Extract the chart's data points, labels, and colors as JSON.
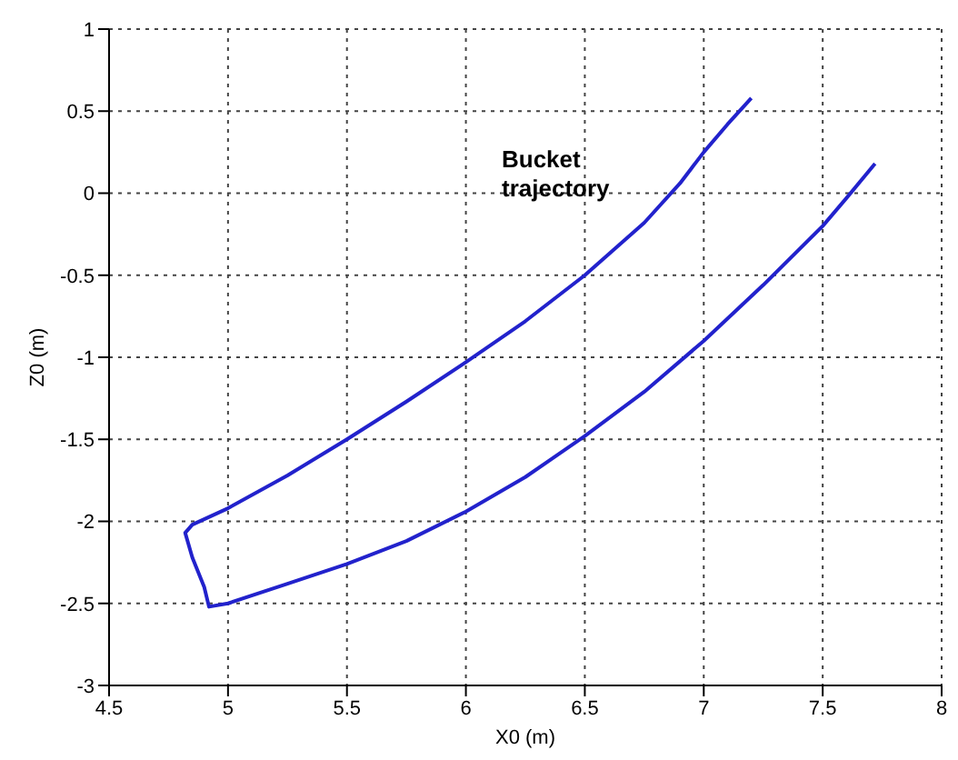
{
  "chart_data": {
    "type": "line",
    "xlabel": "X0 (m)",
    "ylabel": "Z0 (m)",
    "annotations": [
      "Bucket trajectory"
    ],
    "series": [
      {
        "color": "#2222cc",
        "x": [
          7.2,
          7.1,
          7.0,
          6.9,
          6.75,
          6.5,
          6.25,
          6.0,
          5.75,
          5.5,
          5.25,
          5.0,
          4.85,
          4.82,
          4.85,
          4.9,
          4.92,
          5.0,
          5.25,
          5.5,
          5.75,
          6.0,
          6.25,
          6.5,
          6.75,
          7.0,
          7.25,
          7.5,
          7.6,
          7.72
        ],
        "values": [
          0.58,
          0.42,
          0.25,
          0.06,
          -0.18,
          -0.5,
          -0.78,
          -1.03,
          -1.27,
          -1.5,
          -1.72,
          -1.92,
          -2.02,
          -2.07,
          -2.22,
          -2.4,
          -2.52,
          -2.5,
          -2.38,
          -2.26,
          -2.12,
          -1.94,
          -1.73,
          -1.48,
          -1.21,
          -0.9,
          -0.56,
          -0.2,
          -0.03,
          0.18
        ]
      }
    ],
    "xlim": [
      4.5,
      8
    ],
    "xticks": [
      4.5,
      5,
      5.5,
      6,
      6.5,
      7,
      7.5,
      8
    ],
    "ylim": [
      -3,
      1
    ],
    "yticks": [
      -3,
      -2.5,
      -2,
      -1.5,
      -1,
      -0.5,
      0,
      0.5,
      1
    ],
    "grid": true,
    "legend": false,
    "marker": "none",
    "line_style": "solid"
  }
}
